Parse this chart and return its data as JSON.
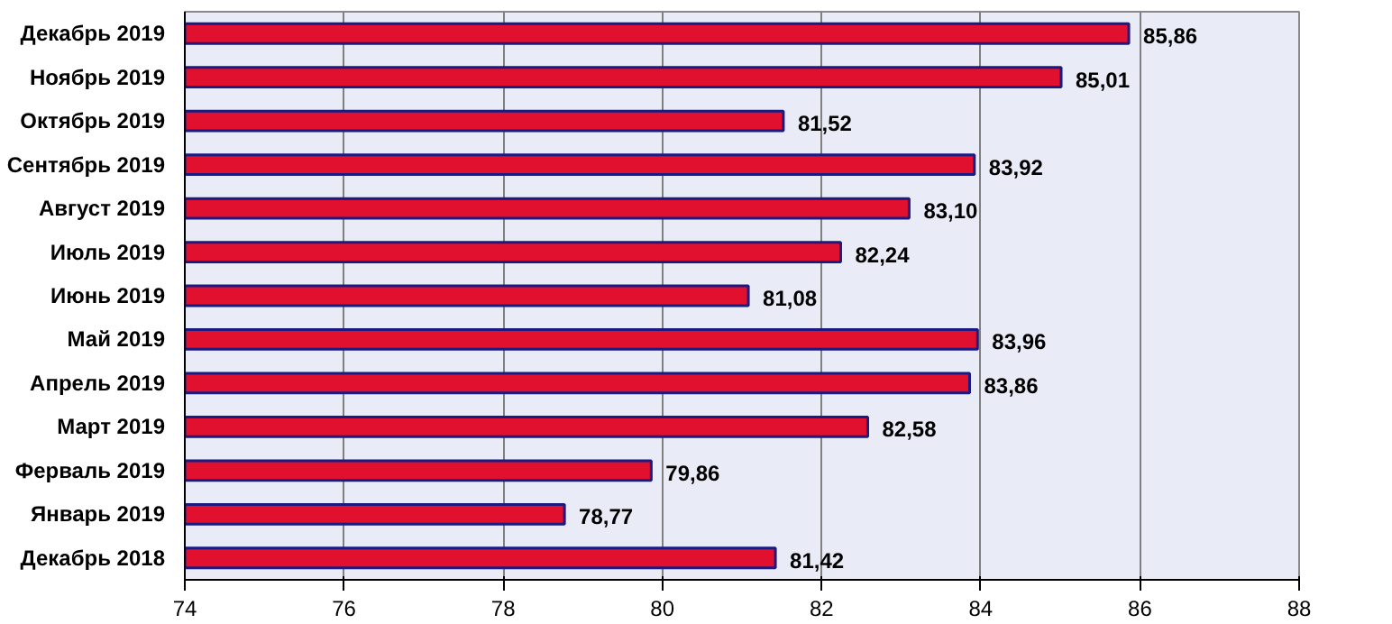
{
  "chart_data": {
    "type": "bar",
    "orientation": "horizontal",
    "categories": [
      "Декабрь 2019",
      "Ноябрь 2019",
      "Октябрь 2019",
      "Сентябрь 2019",
      "Август 2019",
      "Июль 2019",
      "Июнь 2019",
      "Май 2019",
      "Апрель 2019",
      "Март 2019",
      "Ферваль 2019",
      "Январь 2019",
      "Декабрь 2018"
    ],
    "values": [
      85.86,
      85.01,
      81.52,
      83.92,
      83.1,
      82.24,
      81.08,
      83.96,
      83.86,
      82.58,
      79.86,
      78.77,
      81.42
    ],
    "value_labels": [
      "85,86",
      "85,01",
      "81,52",
      "83,92",
      "83,10",
      "82,24",
      "81,08",
      "83,96",
      "83,86",
      "82,58",
      "79,86",
      "78,77",
      "81,42"
    ],
    "color": "#e0102e",
    "xlim": [
      74,
      88
    ],
    "xticks": [
      74,
      76,
      78,
      80,
      82,
      84,
      86,
      88
    ],
    "grid": "x"
  }
}
